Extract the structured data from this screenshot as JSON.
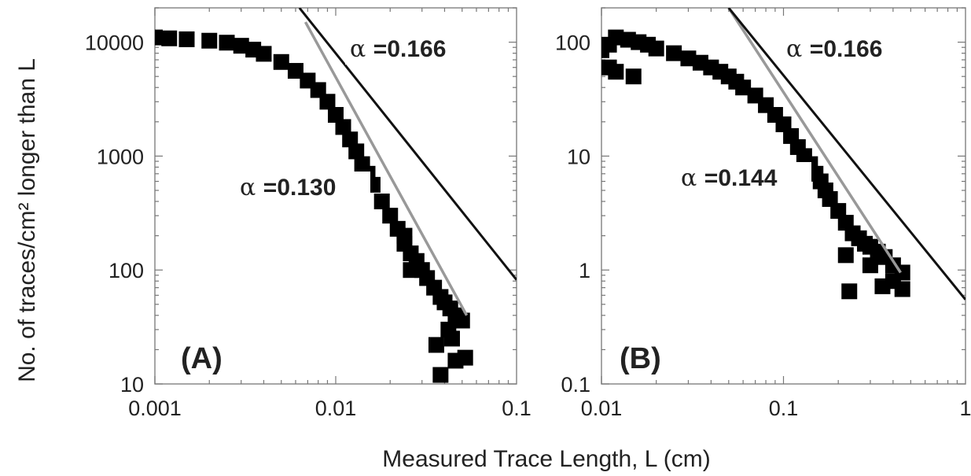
{
  "figure": {
    "ylabel": "No. of traces/cm² longer than L",
    "xlabel": "Measured Trace Length, L (cm)"
  },
  "chart_data": [
    {
      "type": "scatter",
      "panel": "(A)",
      "x_scale": "log",
      "y_scale": "log",
      "xlim": [
        0.001,
        0.1
      ],
      "ylim": [
        10,
        20000
      ],
      "x_ticks": [
        "0.001",
        "0.01",
        "0.1"
      ],
      "y_ticks": [
        "10",
        "100",
        "1000",
        "10000"
      ],
      "series": [
        {
          "kind": "points",
          "color": "#000000",
          "x": [
            0.001,
            0.0012,
            0.0015,
            0.002,
            0.0025,
            0.003,
            0.0035,
            0.004,
            0.005,
            0.006,
            0.007,
            0.008,
            0.009,
            0.01,
            0.011,
            0.012,
            0.013,
            0.014,
            0.015,
            0.016,
            0.018,
            0.02,
            0.022,
            0.024,
            0.026,
            0.028,
            0.03,
            0.032,
            0.035,
            0.038,
            0.04,
            0.043,
            0.046,
            0.05,
            0.024,
            0.026,
            0.036,
            0.042,
            0.038,
            0.046,
            0.052,
            0.044
          ],
          "y": [
            11000,
            10800,
            10600,
            10300,
            9900,
            9300,
            8600,
            7900,
            6700,
            5600,
            4600,
            3800,
            3000,
            2300,
            1800,
            1400,
            1100,
            850,
            700,
            560,
            400,
            300,
            230,
            170,
            140,
            120,
            100,
            85,
            70,
            58,
            52,
            46,
            40,
            36,
            200,
            100,
            22,
            30,
            12,
            16,
            17,
            25
          ]
        },
        {
          "kind": "fit-line",
          "label": "α =0.130",
          "color": "#999999",
          "x": [
            0.0068,
            0.053
          ],
          "y": [
            15000,
            40
          ]
        },
        {
          "kind": "reference-line",
          "label": "α =0.166",
          "color": "#111111",
          "x": [
            0.0063,
            0.1
          ],
          "y": [
            20000,
            82
          ]
        }
      ]
    },
    {
      "type": "scatter",
      "panel": "(B)",
      "x_scale": "log",
      "y_scale": "log",
      "xlim": [
        0.01,
        1
      ],
      "ylim": [
        0.1,
        200
      ],
      "x_ticks": [
        "0.01",
        "0.1",
        "1"
      ],
      "y_ticks": [
        "0.1",
        "1",
        "10",
        "100"
      ],
      "series": [
        {
          "kind": "points",
          "color": "#000000",
          "x": [
            0.01,
            0.011,
            0.012,
            0.014,
            0.016,
            0.018,
            0.02,
            0.025,
            0.03,
            0.035,
            0.04,
            0.045,
            0.05,
            0.055,
            0.06,
            0.07,
            0.08,
            0.09,
            0.1,
            0.11,
            0.12,
            0.13,
            0.14,
            0.15,
            0.16,
            0.17,
            0.18,
            0.2,
            0.22,
            0.24,
            0.26,
            0.28,
            0.3,
            0.33,
            0.36,
            0.4,
            0.45,
            0.012,
            0.015,
            0.011,
            0.22,
            0.23,
            0.35,
            0.45,
            0.3,
            0.4
          ],
          "y": [
            85,
            95,
            110,
            105,
            100,
            95,
            88,
            80,
            72,
            66,
            60,
            55,
            50,
            45,
            40,
            34,
            28,
            23,
            19,
            15,
            12,
            10,
            8.5,
            7,
            6,
            5,
            4.2,
            3.3,
            2.6,
            2.1,
            1.9,
            1.7,
            1.6,
            1.45,
            1.3,
            1.1,
            0.95,
            55,
            50,
            60,
            1.35,
            0.65,
            0.72,
            0.68,
            1.1,
            0.8
          ]
        },
        {
          "kind": "fit-line",
          "label": "α =0.144",
          "color": "#999999",
          "x": [
            0.05,
            0.44
          ],
          "y": [
            200,
            0.95
          ]
        },
        {
          "kind": "reference-line",
          "label": "α =0.166",
          "color": "#111111",
          "x": [
            0.05,
            1
          ],
          "y": [
            200,
            0.55
          ]
        }
      ]
    }
  ]
}
